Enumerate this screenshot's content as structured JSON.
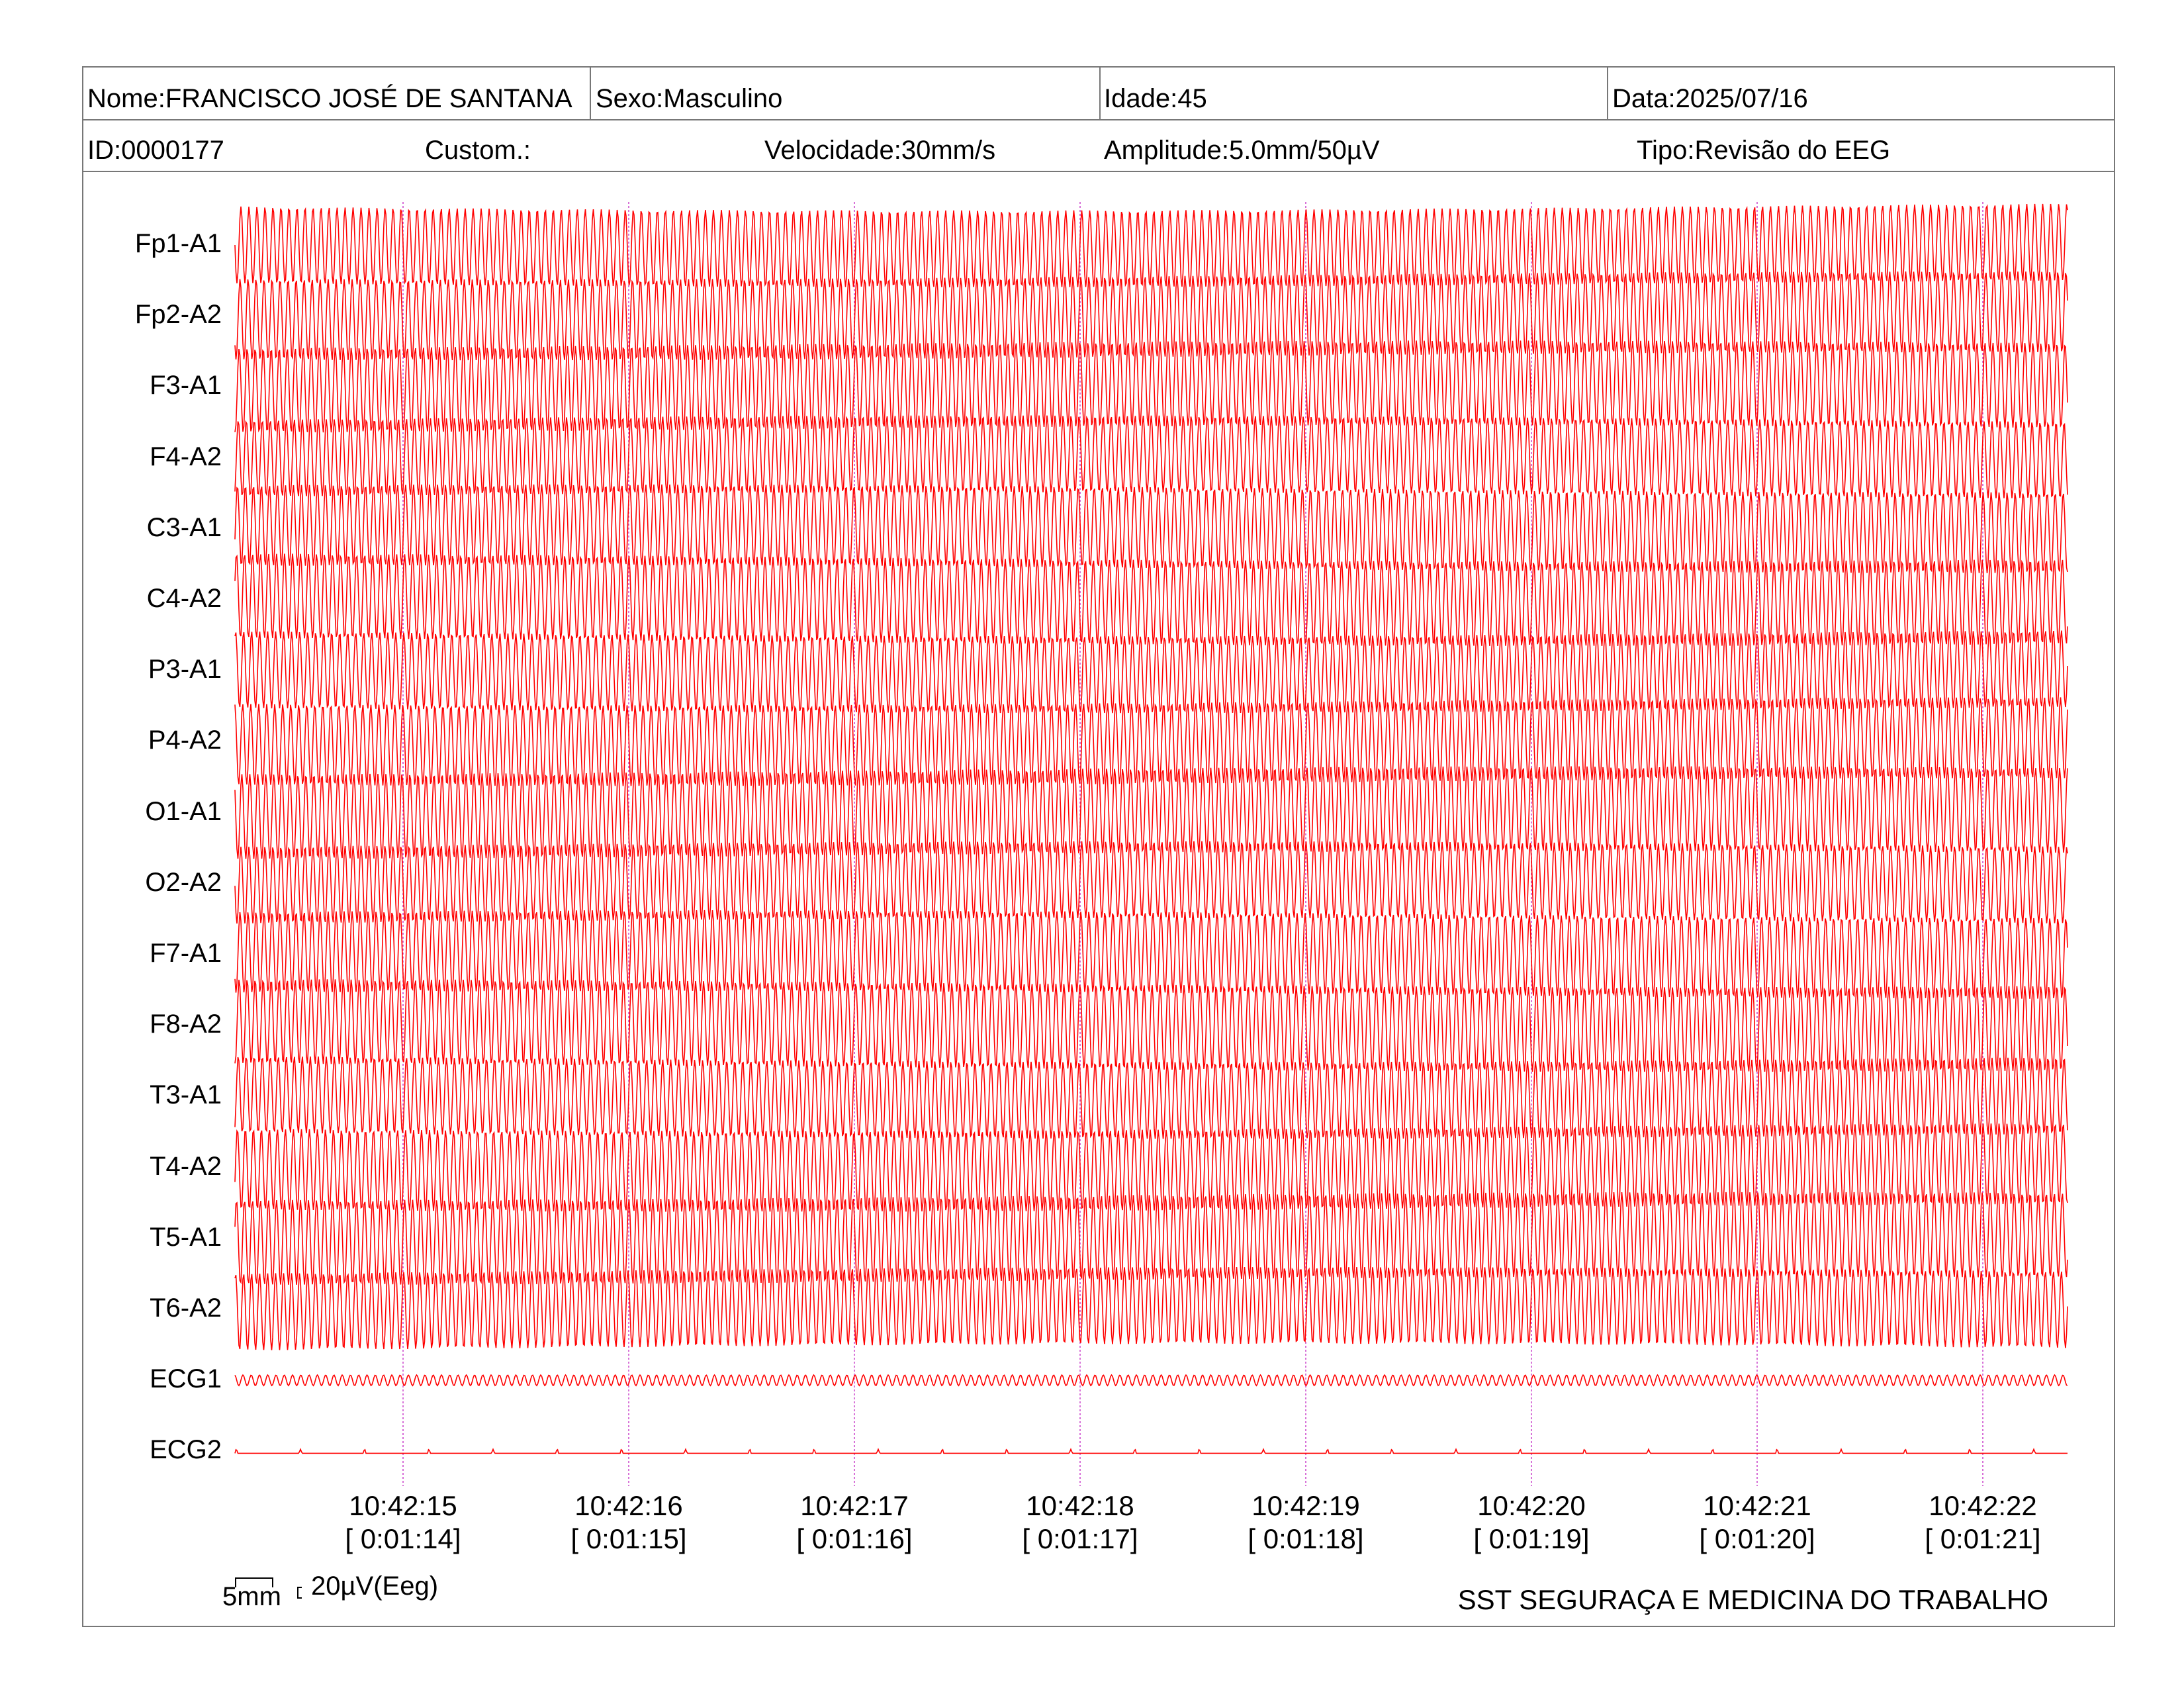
{
  "header": {
    "nome": "Nome:FRANCISCO JOSÉ DE SANTANA",
    "sexo": "Sexo:Masculino",
    "idade": "Idade:45",
    "data": "Data:2025/07/16",
    "id": "ID:0000177",
    "custom": "Custom.:",
    "velocidade": "Velocidade:30mm/s",
    "amplitude": "Amplitude:5.0mm/50µV",
    "tipo": "Tipo:Revisão do EEG"
  },
  "chart_data": {
    "type": "line",
    "channels": [
      "Fp1-A1",
      "Fp2-A2",
      "F3-A1",
      "F4-A2",
      "C3-A1",
      "C4-A2",
      "P3-A1",
      "P4-A2",
      "O1-A1",
      "O2-A2",
      "F7-A1",
      "F8-A2",
      "T3-A1",
      "T4-A2",
      "T5-A1",
      "T6-A2",
      "ECG1",
      "ECG2"
    ],
    "time_ticks": [
      "10:42:15",
      "10:42:16",
      "10:42:17",
      "10:42:18",
      "10:42:19",
      "10:42:20",
      "10:42:21",
      "10:42:22"
    ],
    "elapsed_ticks": [
      "[ 0:01:14]",
      "[ 0:01:15]",
      "[ 0:01:16]",
      "[ 0:01:17]",
      "[ 0:01:18]",
      "[ 0:01:19]",
      "[ 0:01:20]",
      "[ 0:01:21]"
    ],
    "waveform": "sinusoidal",
    "trace_color": "#ff0000",
    "marker_color": "#cc44cc"
  },
  "scale": {
    "time": "5mm",
    "amplitude": "20µV(Eeg)"
  },
  "footer": "SST SEGURAÇA E MEDICINA DO TRABALHO"
}
